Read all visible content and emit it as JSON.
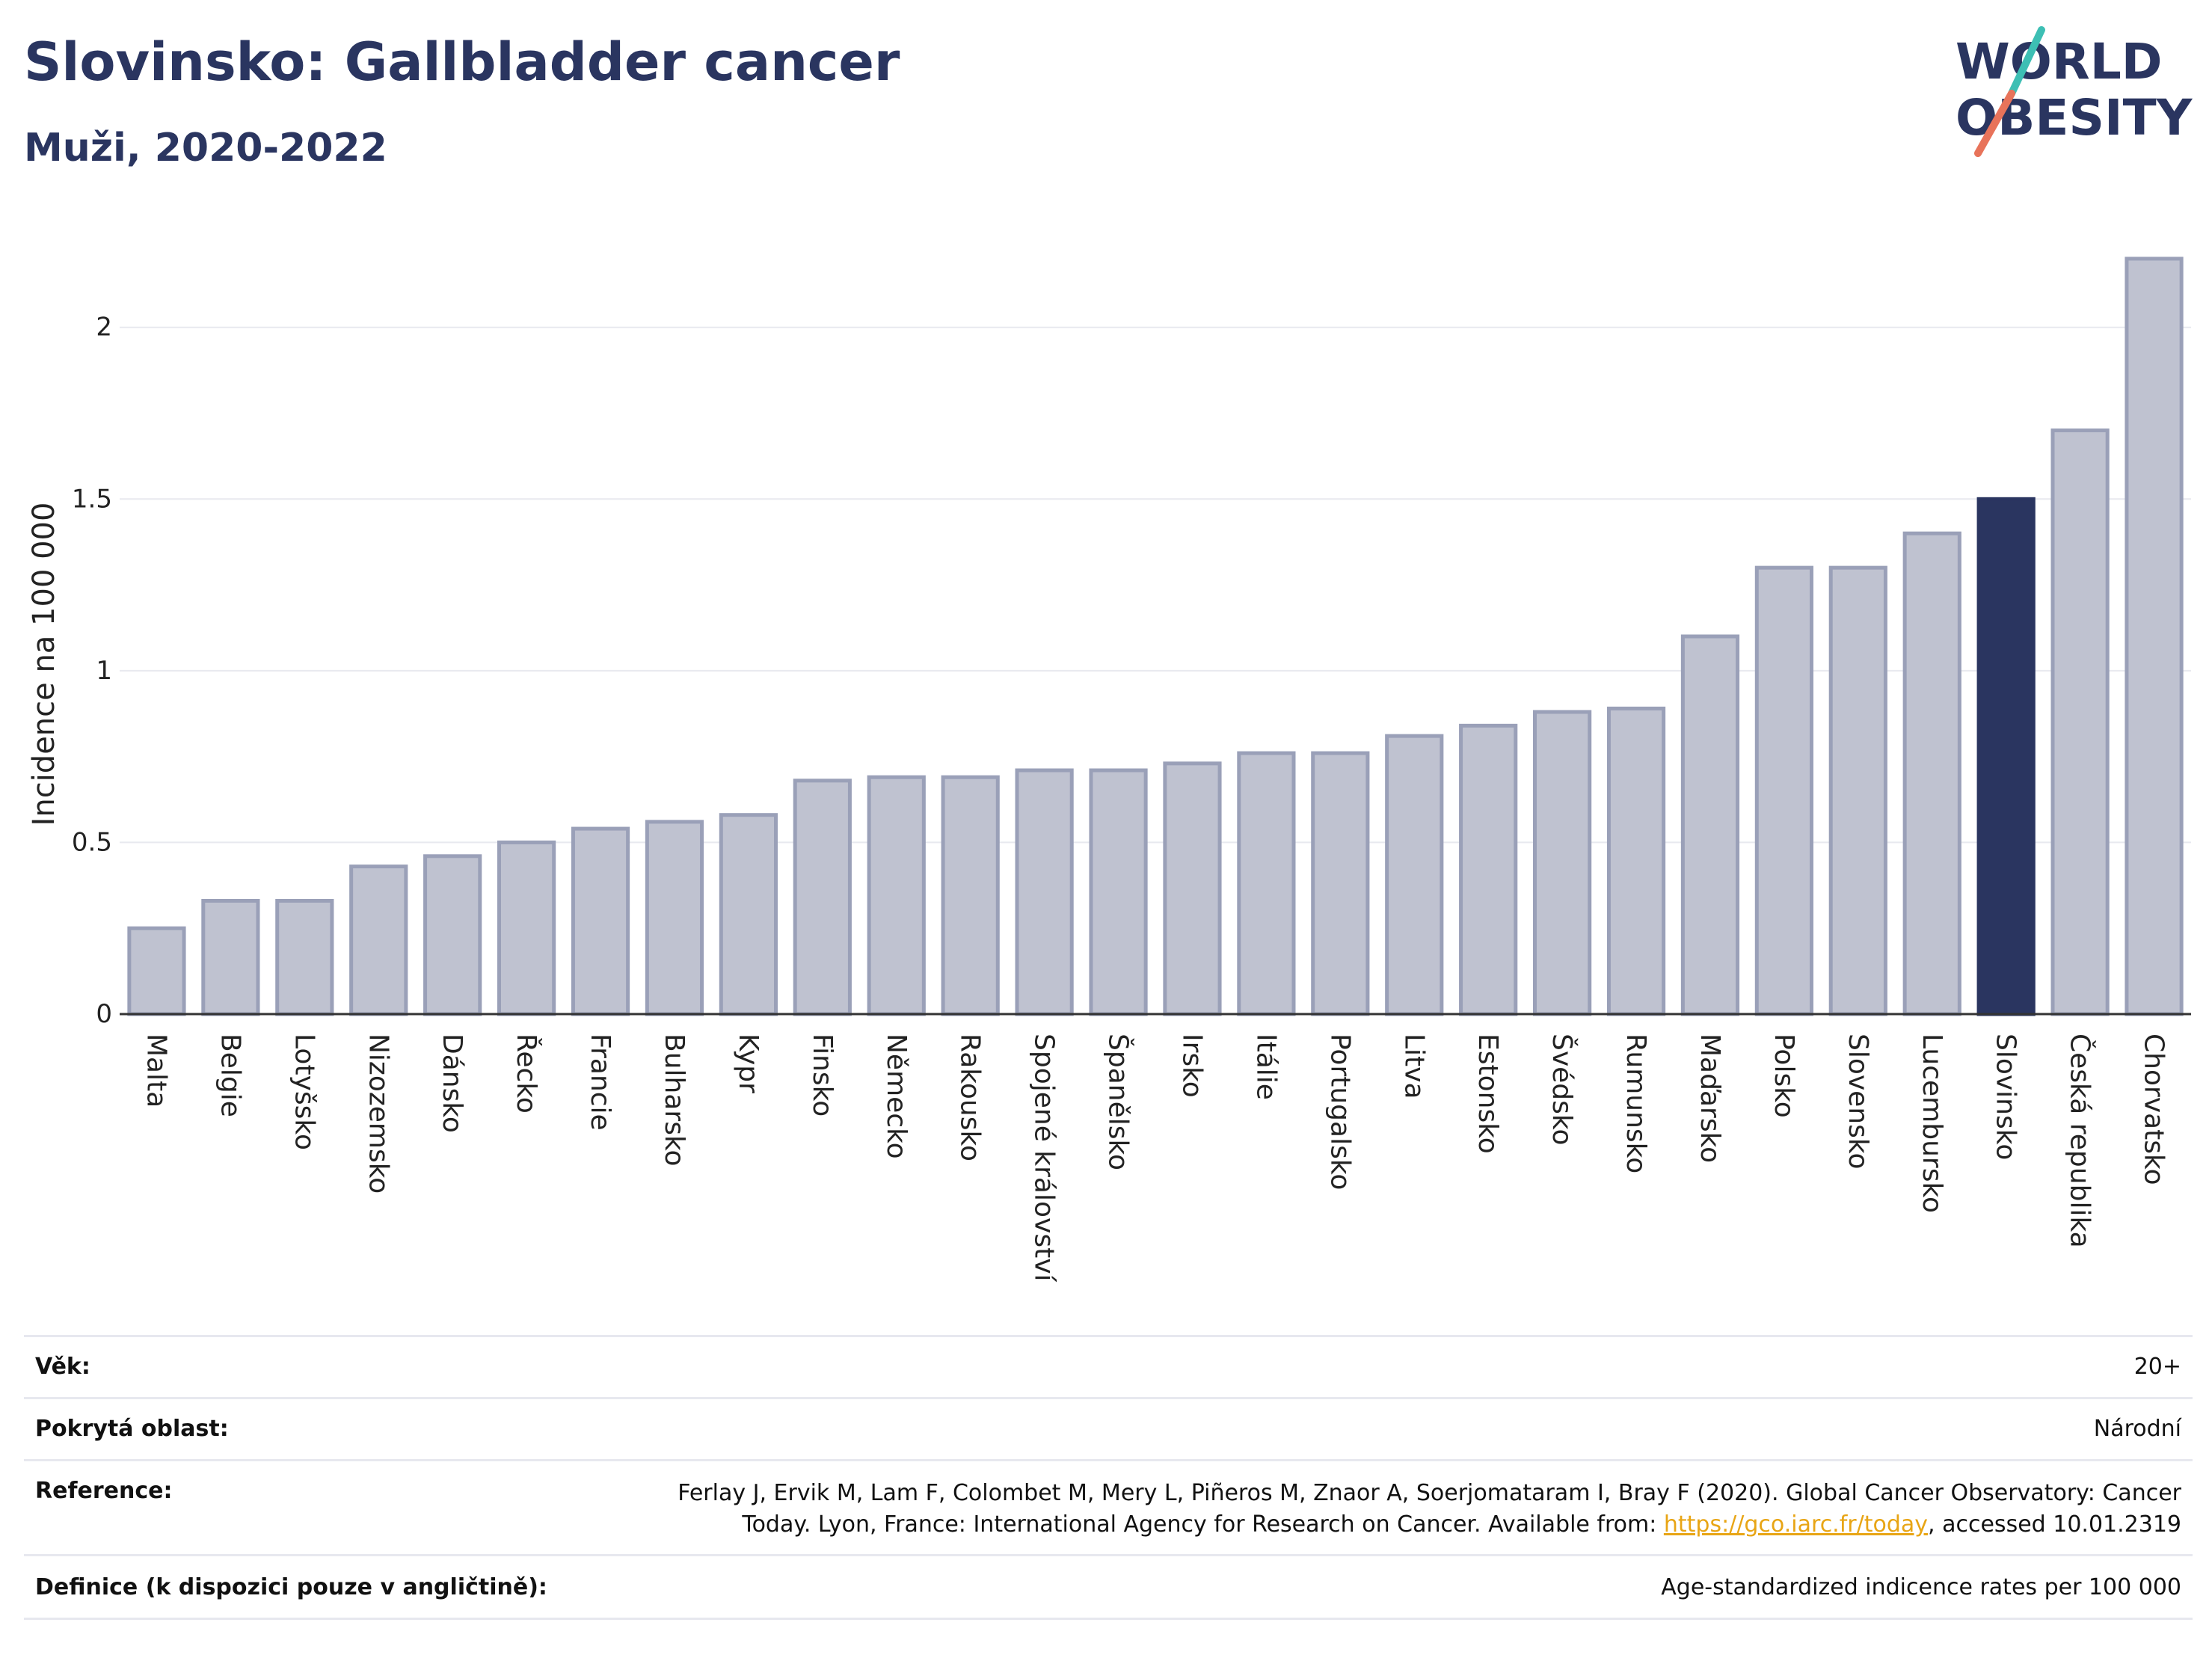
{
  "header": {
    "title": "Slovinsko: Gallbladder cancer",
    "subtitle": "Muži, 2020-2022",
    "logo_line1": "WORLD",
    "logo_line2": "OBESITY"
  },
  "colors": {
    "bar": "#bfc2d0",
    "bar_stroke": "#9aa0b8",
    "highlight": "#2a3560",
    "title": "#2a3560",
    "grid": "#e8e9ef",
    "link": "#e8a515",
    "logo_teal": "#3dbfb4",
    "logo_coral": "#e8735a"
  },
  "chart_data": {
    "type": "bar",
    "title": "Slovinsko: Gallbladder cancer",
    "subtitle": "Muži, 2020-2022",
    "xlabel": "",
    "ylabel": "Incidence na 100 000",
    "ylim": [
      0,
      2.3
    ],
    "yticks": [
      0,
      0.5,
      1,
      1.5,
      2
    ],
    "ytick_labels": [
      "0",
      "0.5",
      "1",
      "1.5",
      "2"
    ],
    "grid": true,
    "highlight": "Slovinsko",
    "categories": [
      "Malta",
      "Belgie",
      "Lotyšsko",
      "Nizozemsko",
      "Dánsko",
      "Řecko",
      "Francie",
      "Bulharsko",
      "Kypr",
      "Finsko",
      "Německo",
      "Rakousko",
      "Spojené království",
      "Španělsko",
      "Irsko",
      "Itálie",
      "Portugalsko",
      "Litva",
      "Estonsko",
      "Švédsko",
      "Rumunsko",
      "Maďarsko",
      "Polsko",
      "Slovensko",
      "Lucembursko",
      "Slovinsko",
      "Česká republika",
      "Chorvatsko"
    ],
    "values": [
      0.25,
      0.33,
      0.33,
      0.43,
      0.46,
      0.5,
      0.54,
      0.56,
      0.58,
      0.68,
      0.69,
      0.69,
      0.71,
      0.71,
      0.73,
      0.76,
      0.76,
      0.81,
      0.84,
      0.88,
      0.89,
      1.1,
      1.3,
      1.3,
      1.4,
      1.5,
      1.7,
      2.2
    ]
  },
  "meta": {
    "age_label": "Věk:",
    "age_value": "20+",
    "area_label": "Pokrytá oblast:",
    "area_value": "Národní",
    "reference_label": "Reference:",
    "reference_line1": "Ferlay J, Ervik M, Lam F, Colombet M, Mery L, Piñeros M, Znaor A, Soerjomataram I, Bray F (2020). Global Cancer Observatory: Cancer",
    "reference_line2_pre": "Today. Lyon, France: International Agency for Research on Cancer. Available from: ",
    "reference_link": "https://gco.iarc.fr/today",
    "reference_line2_post": ", accessed 10.01.2319",
    "definition_label": "Definice (k dispozici pouze v angličtině):",
    "definition_value": "Age-standardized indicence rates per 100 000"
  }
}
